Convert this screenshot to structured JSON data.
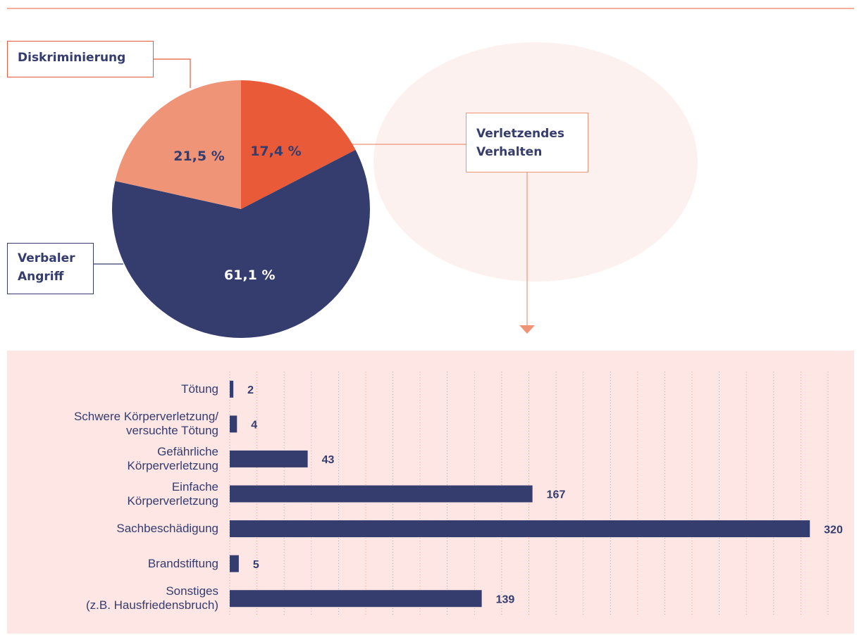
{
  "chart_data": [
    {
      "type": "pie",
      "categories": [
        "Verletzendes\nVerhalten",
        "Verbaler\nAngriff",
        "Diskriminierung"
      ],
      "values": [
        17.4,
        61.1,
        21.5
      ],
      "value_labels": [
        "17,4 %",
        "61,1 %",
        "21,5 %"
      ],
      "colors": [
        "#e85a38",
        "#353c6e",
        "#f09478"
      ]
    },
    {
      "type": "barh",
      "categories": [
        "Tötung",
        "Schwere Körperverletzung/\nversuchte Tötung",
        "Gefährliche\nKörperverletzung",
        "Einfache\nKörperverletzung",
        "Sachbeschädigung",
        "Brandstiftung",
        "Sonstiges\n(z.B. Hausfriedensbruch)"
      ],
      "values": [
        2,
        4,
        43,
        167,
        320,
        5,
        139
      ],
      "color": "#353c6e",
      "xlim": [
        0,
        330
      ],
      "xticks": [
        0,
        15,
        30,
        45,
        60,
        75,
        90,
        105,
        120,
        135,
        150,
        165,
        180,
        195,
        210,
        225,
        240,
        255,
        270,
        285,
        300,
        315,
        330
      ],
      "grid": true
    }
  ]
}
